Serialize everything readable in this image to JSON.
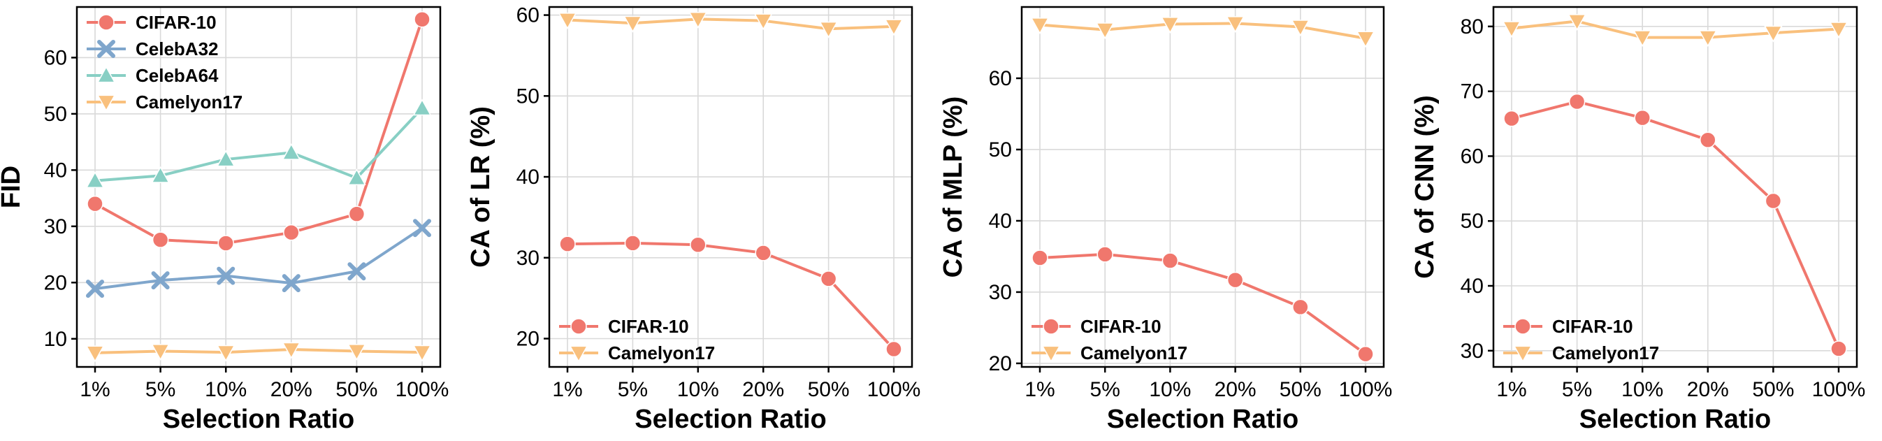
{
  "colors": {
    "CIFAR-10": "#f0776d",
    "CelebA32": "#7fa6cc",
    "CelebA64": "#88cfc4",
    "Camelyon17": "#f9c07d"
  },
  "chart_data": [
    {
      "type": "line",
      "categories": [
        "1%",
        "5%",
        "10%",
        "20%",
        "50%",
        "100%"
      ],
      "xlabel": "Selection Ratio",
      "ylabel": "FID",
      "ylim": [
        5,
        69
      ],
      "yticks": [
        10,
        20,
        30,
        40,
        50,
        60
      ],
      "grid": true,
      "legend_position": "top-left",
      "series": [
        {
          "name": "CIFAR-10",
          "marker": "circle",
          "values": [
            34.0,
            27.6,
            27.0,
            28.9,
            32.2,
            66.8
          ]
        },
        {
          "name": "CelebA32",
          "marker": "x",
          "values": [
            18.9,
            20.4,
            21.2,
            19.9,
            22.0,
            29.7
          ]
        },
        {
          "name": "CelebA64",
          "marker": "triangle-up",
          "values": [
            38.1,
            39.0,
            41.9,
            43.1,
            38.6,
            51.0
          ]
        },
        {
          "name": "Camelyon17",
          "marker": "triangle-down",
          "values": [
            7.5,
            7.8,
            7.6,
            8.1,
            7.8,
            7.6
          ]
        }
      ]
    },
    {
      "type": "line",
      "categories": [
        "1%",
        "5%",
        "10%",
        "20%",
        "50%",
        "100%"
      ],
      "xlabel": "Selection Ratio",
      "ylabel": "CA of LR (%)",
      "ylim": [
        16.5,
        61
      ],
      "yticks": [
        20,
        30,
        40,
        50,
        60
      ],
      "grid": true,
      "legend_position": "bottom-left",
      "series": [
        {
          "name": "CIFAR-10",
          "marker": "circle",
          "values": [
            31.7,
            31.8,
            31.6,
            30.6,
            27.4,
            18.7
          ]
        },
        {
          "name": "Camelyon17",
          "marker": "triangle-down",
          "values": [
            59.4,
            59.0,
            59.5,
            59.3,
            58.3,
            58.6
          ]
        }
      ]
    },
    {
      "type": "line",
      "categories": [
        "1%",
        "5%",
        "10%",
        "20%",
        "50%",
        "100%"
      ],
      "xlabel": "Selection Ratio",
      "ylabel": "CA of MLP (%)",
      "ylim": [
        19.5,
        70
      ],
      "yticks": [
        20,
        30,
        40,
        50,
        60
      ],
      "grid": true,
      "legend_position": "bottom-left",
      "series": [
        {
          "name": "CIFAR-10",
          "marker": "circle",
          "values": [
            34.8,
            35.3,
            34.4,
            31.7,
            27.9,
            21.3
          ]
        },
        {
          "name": "Camelyon17",
          "marker": "triangle-down",
          "values": [
            67.5,
            66.8,
            67.6,
            67.7,
            67.2,
            65.6
          ]
        }
      ]
    },
    {
      "type": "line",
      "categories": [
        "1%",
        "5%",
        "10%",
        "20%",
        "50%",
        "100%"
      ],
      "xlabel": "Selection Ratio",
      "ylabel": "CA of CNN (%)",
      "ylim": [
        27.5,
        83
      ],
      "yticks": [
        30,
        40,
        50,
        60,
        70,
        80
      ],
      "grid": true,
      "legend_position": "bottom-left",
      "series": [
        {
          "name": "CIFAR-10",
          "marker": "circle",
          "values": [
            65.8,
            68.4,
            65.9,
            62.5,
            53.1,
            30.3
          ]
        },
        {
          "name": "Camelyon17",
          "marker": "triangle-down",
          "values": [
            79.7,
            80.8,
            78.3,
            78.3,
            79.0,
            79.6
          ]
        }
      ]
    }
  ]
}
